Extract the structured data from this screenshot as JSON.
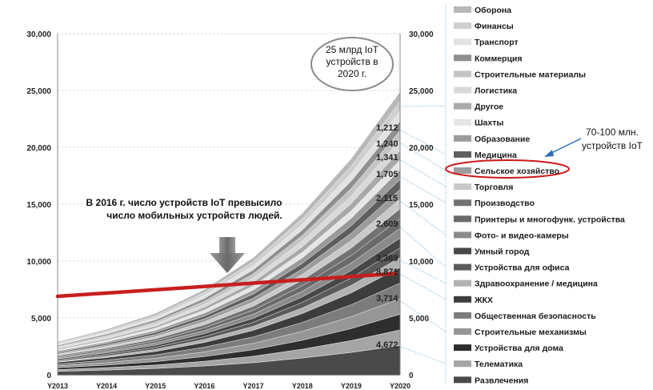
{
  "chart_data": {
    "type": "area",
    "stacked": true,
    "x": [
      "Y2013",
      "Y2014",
      "Y2015",
      "Y2016",
      "Y2017",
      "Y2018",
      "Y2019",
      "Y2020"
    ],
    "ylim": [
      0,
      30000
    ],
    "y_ticks_left": [
      "30,000",
      "25,000",
      "20,000",
      "15,000",
      "10,000",
      "5,000",
      "0"
    ],
    "y_ticks_right": [
      "30,000",
      "25,000",
      "20,000",
      "15,000",
      "10,000",
      "5,000",
      "0"
    ],
    "totals": [
      2900,
      4000,
      5400,
      7500,
      10300,
      14200,
      19000,
      24900
    ],
    "series_2020_labels": [
      "1,212",
      "1,240",
      "1,341",
      "1,705",
      "2,115",
      "2,609",
      "3,369",
      "8,871",
      "3,714",
      "4,672"
    ],
    "legend": [
      {
        "name": "Оборона",
        "color": "#b8b8b8"
      },
      {
        "name": "Финансы",
        "color": "#cfcfcf"
      },
      {
        "name": "Транспорт",
        "color": "#e2e2e2"
      },
      {
        "name": "Коммерция",
        "color": "#8f8f8f"
      },
      {
        "name": "Строительные материалы",
        "color": "#c4c4c4"
      },
      {
        "name": "Логистика",
        "color": "#d9d9d9"
      },
      {
        "name": "Другое",
        "color": "#a9a9a9"
      },
      {
        "name": "Шахты",
        "color": "#e6e6e6"
      },
      {
        "name": "Образование",
        "color": "#9a9a9a"
      },
      {
        "name": "Медицина",
        "color": "#5e5e5e"
      },
      {
        "name": "Сельское хозяйство",
        "color": "#9c9c9c"
      },
      {
        "name": "Торговля",
        "color": "#c9c9c9"
      },
      {
        "name": "Производство",
        "color": "#727272"
      },
      {
        "name": "Принтеры и многофунк. устройства",
        "color": "#6a6a6a"
      },
      {
        "name": "Фото- и видео-камеры",
        "color": "#8a8a8a"
      },
      {
        "name": "Умный город",
        "color": "#474747"
      },
      {
        "name": "Устройства для офиса",
        "color": "#5a5a5a"
      },
      {
        "name": "Здравоохранение / медицина",
        "color": "#b2b2b2"
      },
      {
        "name": "ЖКХ",
        "color": "#3d3d3d"
      },
      {
        "name": "Общественная безопасность",
        "color": "#7c7c7c"
      },
      {
        "name": "Строительные механизмы",
        "color": "#969696"
      },
      {
        "name": "Устройства для дома",
        "color": "#2e2e2e"
      },
      {
        "name": "Телематика",
        "color": "#a5a5a5"
      },
      {
        "name": "Развлечения",
        "color": "#4a4a4a"
      }
    ],
    "mobile_trend_line": {
      "label": "В 2016 г. число устройств IoT превысило число мобильных устройств людей.",
      "values": [
        6900,
        8900
      ],
      "color": "#c81e1e"
    },
    "annotations": {
      "iot_2020": "25 млрд IoT устройств в 2020 г.",
      "agriculture": "70-100 млн. устройств IoT"
    }
  },
  "text": {
    "crossover_line1": "В 2016 г. число устройств IoT превысило",
    "crossover_line2": "число мобильных устройств людей.",
    "bubble_line1": "25 млрд IoT",
    "bubble_line2": "устройств в",
    "bubble_line3": "2020 г.",
    "agri_line1": "70-100 млн.",
    "agri_line2": "устройств IoT"
  },
  "colors": {
    "trend": "#c81e1e",
    "highlight": "#cc1a1a",
    "arrow": "#7a7a7a",
    "connector": "#4a9bc9",
    "callout_arrow": "#2b6fb5"
  }
}
